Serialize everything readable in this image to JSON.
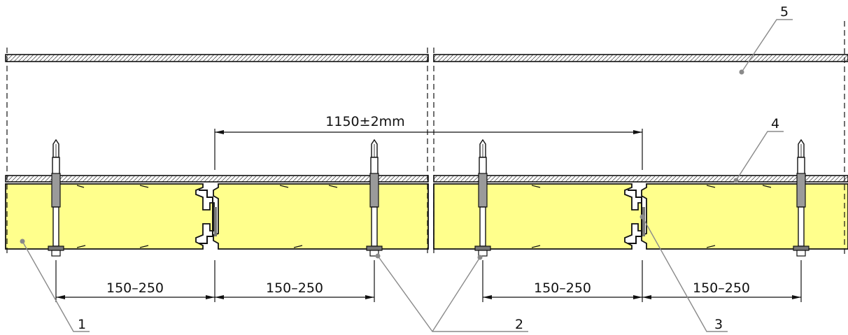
{
  "dimensions": {
    "overall": "1150±2mm",
    "spacings": [
      "150–250",
      "150–250",
      "150–250",
      "150–250"
    ]
  },
  "callouts": [
    {
      "label": "1"
    },
    {
      "label": "2"
    },
    {
      "label": "3"
    },
    {
      "label": "4"
    },
    {
      "label": "5"
    }
  ],
  "colors": {
    "insulation": "#ffff8c",
    "lines": "#111111",
    "leader": "#8a8a8a",
    "fastener": "#9a9a9a"
  }
}
